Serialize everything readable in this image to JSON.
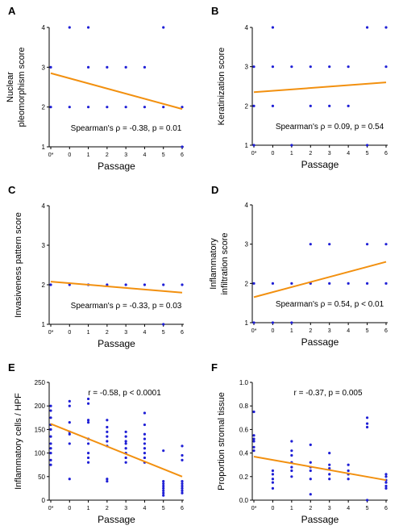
{
  "figure": {
    "point_color": "#1f1fd6",
    "line_color": "#f2900f"
  },
  "chart_data": [
    {
      "panel_label": "A",
      "type": "scatter",
      "xlabel": "Passage",
      "ylabel": [
        "Nuclear",
        "pleomorphism score"
      ],
      "x_ticks": [
        "0*",
        "0",
        "1",
        "2",
        "3",
        "4",
        "5",
        "6"
      ],
      "ylim": [
        1,
        4
      ],
      "y_ticks": [
        1,
        2,
        3,
        4
      ],
      "annotation": "Spearman's ρ = -0.38, p = 0.01",
      "points": [
        [
          0,
          3
        ],
        [
          0,
          2
        ],
        [
          1,
          4
        ],
        [
          1,
          2
        ],
        [
          2,
          4
        ],
        [
          2,
          3
        ],
        [
          2,
          2
        ],
        [
          3,
          3
        ],
        [
          3,
          2
        ],
        [
          4,
          3
        ],
        [
          4,
          2
        ],
        [
          5,
          3
        ],
        [
          5,
          2
        ],
        [
          6,
          4
        ],
        [
          6,
          2
        ],
        [
          7,
          2
        ],
        [
          7,
          1
        ]
      ],
      "fit": {
        "x": [
          0,
          7
        ],
        "y": [
          2.85,
          1.95
        ]
      }
    },
    {
      "panel_label": "B",
      "type": "scatter",
      "xlabel": "Passage",
      "ylabel": [
        "Keratinization score"
      ],
      "x_ticks": [
        "0*",
        "0",
        "1",
        "2",
        "3",
        "4",
        "5",
        "6"
      ],
      "ylim": [
        1,
        4
      ],
      "y_ticks": [
        1,
        2,
        3,
        4
      ],
      "annotation": "Spearman's ρ = 0.09, p = 0.54",
      "points": [
        [
          0,
          3
        ],
        [
          0,
          2
        ],
        [
          0,
          1
        ],
        [
          1,
          4
        ],
        [
          1,
          3
        ],
        [
          1,
          2
        ],
        [
          2,
          3
        ],
        [
          2,
          1
        ],
        [
          3,
          3
        ],
        [
          3,
          2
        ],
        [
          4,
          3
        ],
        [
          4,
          2
        ],
        [
          5,
          3
        ],
        [
          5,
          2
        ],
        [
          6,
          4
        ],
        [
          6,
          1
        ],
        [
          7,
          4
        ],
        [
          7,
          3
        ]
      ],
      "fit": {
        "x": [
          0,
          7
        ],
        "y": [
          2.35,
          2.6
        ]
      }
    },
    {
      "panel_label": "C",
      "type": "scatter",
      "xlabel": "Passage",
      "ylabel": [
        "Invasiveness pattern score"
      ],
      "x_ticks": [
        "0*",
        "0",
        "1",
        "2",
        "3",
        "4",
        "5",
        "6"
      ],
      "ylim": [
        1,
        4
      ],
      "y_ticks": [
        1,
        2,
        3,
        4
      ],
      "annotation": "Spearman's ρ = -0.33, p = 0.03",
      "points": [
        [
          0,
          2
        ],
        [
          1,
          2
        ],
        [
          2,
          2
        ],
        [
          3,
          2
        ],
        [
          4,
          2
        ],
        [
          5,
          2
        ],
        [
          6,
          2
        ],
        [
          6,
          1
        ],
        [
          7,
          2
        ]
      ],
      "fit": {
        "x": [
          0,
          7
        ],
        "y": [
          2.08,
          1.8
        ]
      }
    },
    {
      "panel_label": "D",
      "type": "scatter",
      "xlabel": "Passage",
      "ylabel": [
        "Inflammatory",
        "infiltration score"
      ],
      "x_ticks": [
        "0*",
        "0",
        "1",
        "2",
        "3",
        "4",
        "5",
        "6"
      ],
      "ylim": [
        1,
        4
      ],
      "y_ticks": [
        1,
        2,
        3,
        4
      ],
      "annotation": "Spearman's ρ = 0.54, p < 0.01",
      "points": [
        [
          0,
          2
        ],
        [
          0,
          1
        ],
        [
          1,
          2
        ],
        [
          1,
          1
        ],
        [
          2,
          2
        ],
        [
          2,
          1
        ],
        [
          3,
          3
        ],
        [
          3,
          2
        ],
        [
          4,
          3
        ],
        [
          4,
          2
        ],
        [
          5,
          2
        ],
        [
          6,
          3
        ],
        [
          6,
          2
        ],
        [
          7,
          3
        ],
        [
          7,
          2
        ]
      ],
      "fit": {
        "x": [
          0,
          7
        ],
        "y": [
          1.65,
          2.55
        ]
      }
    },
    {
      "panel_label": "E",
      "type": "scatter",
      "xlabel": "Passage",
      "ylabel": [
        "Inflammatory cells / HPF"
      ],
      "x_ticks": [
        "0*",
        "0",
        "1",
        "2",
        "3",
        "4",
        "5",
        "6"
      ],
      "ylim": [
        0,
        250
      ],
      "y_ticks": [
        0,
        50,
        100,
        150,
        200,
        250
      ],
      "annotation": "r = -0.58, p < 0.0001",
      "points": [
        [
          0,
          200
        ],
        [
          0,
          190
        ],
        [
          0,
          175
        ],
        [
          0,
          160
        ],
        [
          0,
          150
        ],
        [
          0,
          135
        ],
        [
          0,
          120
        ],
        [
          0,
          110
        ],
        [
          0,
          100
        ],
        [
          0,
          85
        ],
        [
          0,
          75
        ],
        [
          1,
          210
        ],
        [
          1,
          200
        ],
        [
          1,
          165
        ],
        [
          1,
          145
        ],
        [
          1,
          140
        ],
        [
          1,
          120
        ],
        [
          1,
          45
        ],
        [
          2,
          215
        ],
        [
          2,
          205
        ],
        [
          2,
          170
        ],
        [
          2,
          165
        ],
        [
          2,
          130
        ],
        [
          2,
          120
        ],
        [
          2,
          100
        ],
        [
          2,
          90
        ],
        [
          2,
          80
        ],
        [
          3,
          170
        ],
        [
          3,
          155
        ],
        [
          3,
          145
        ],
        [
          3,
          135
        ],
        [
          3,
          125
        ],
        [
          3,
          115
        ],
        [
          3,
          45
        ],
        [
          3,
          40
        ],
        [
          4,
          145
        ],
        [
          4,
          135
        ],
        [
          4,
          125
        ],
        [
          4,
          120
        ],
        [
          4,
          110
        ],
        [
          4,
          100
        ],
        [
          4,
          90
        ],
        [
          4,
          80
        ],
        [
          5,
          185
        ],
        [
          5,
          160
        ],
        [
          5,
          140
        ],
        [
          5,
          130
        ],
        [
          5,
          120
        ],
        [
          5,
          110
        ],
        [
          5,
          100
        ],
        [
          5,
          90
        ],
        [
          5,
          80
        ],
        [
          6,
          105
        ],
        [
          6,
          40
        ],
        [
          6,
          35
        ],
        [
          6,
          30
        ],
        [
          6,
          25
        ],
        [
          6,
          20
        ],
        [
          6,
          15
        ],
        [
          6,
          10
        ],
        [
          7,
          115
        ],
        [
          7,
          95
        ],
        [
          7,
          85
        ],
        [
          7,
          40
        ],
        [
          7,
          35
        ],
        [
          7,
          30
        ],
        [
          7,
          25
        ],
        [
          7,
          20
        ],
        [
          7,
          15
        ]
      ],
      "fit": {
        "x": [
          0,
          7
        ],
        "y": [
          162,
          50
        ]
      }
    },
    {
      "panel_label": "F",
      "type": "scatter",
      "xlabel": "Passage",
      "ylabel": [
        "Proportion stromal tissue"
      ],
      "x_ticks": [
        "0*",
        "0",
        "1",
        "2",
        "3",
        "4",
        "5",
        "6"
      ],
      "ylim": [
        0.0,
        1.0
      ],
      "y_ticks": [
        "0.0",
        "0.2",
        "0.4",
        "0.6",
        "0.8",
        "1.0"
      ],
      "annotation": "r = -0.37, p = 0.005",
      "points": [
        [
          0,
          0.75
        ],
        [
          0,
          0.55
        ],
        [
          0,
          0.52
        ],
        [
          0,
          0.5
        ],
        [
          0,
          0.45
        ],
        [
          0,
          0.42
        ],
        [
          1,
          0.25
        ],
        [
          1,
          0.22
        ],
        [
          1,
          0.18
        ],
        [
          1,
          0.15
        ],
        [
          1,
          0.1
        ],
        [
          2,
          0.5
        ],
        [
          2,
          0.42
        ],
        [
          2,
          0.38
        ],
        [
          2,
          0.32
        ],
        [
          2,
          0.28
        ],
        [
          2,
          0.25
        ],
        [
          2,
          0.2
        ],
        [
          3,
          0.47
        ],
        [
          3,
          0.32
        ],
        [
          3,
          0.28
        ],
        [
          3,
          0.25
        ],
        [
          3,
          0.18
        ],
        [
          3,
          0.05
        ],
        [
          4,
          0.4
        ],
        [
          4,
          0.3
        ],
        [
          4,
          0.27
        ],
        [
          4,
          0.22
        ],
        [
          4,
          0.18
        ],
        [
          5,
          0.3
        ],
        [
          5,
          0.25
        ],
        [
          5,
          0.22
        ],
        [
          5,
          0.18
        ],
        [
          6,
          0.7
        ],
        [
          6,
          0.65
        ],
        [
          6,
          0.62
        ],
        [
          6,
          0.0
        ],
        [
          7,
          0.22
        ],
        [
          7,
          0.2
        ],
        [
          7,
          0.17
        ],
        [
          7,
          0.15
        ],
        [
          7,
          0.12
        ],
        [
          7,
          0.1
        ]
      ],
      "fit": {
        "x": [
          0,
          7
        ],
        "y": [
          0.37,
          0.17
        ]
      }
    }
  ]
}
